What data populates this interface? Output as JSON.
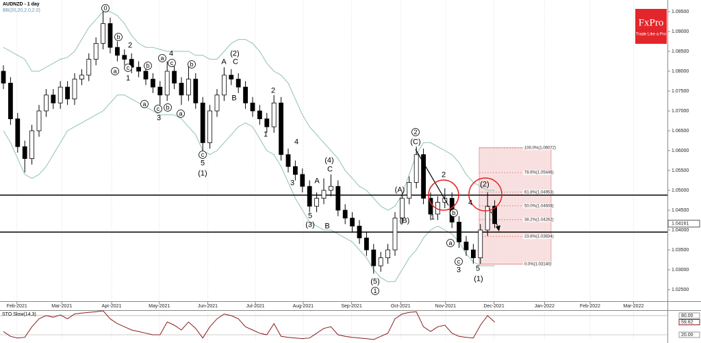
{
  "logo": {
    "brand": "FxPro",
    "tagline": "Trade Like a Pro"
  },
  "chart_data": [
    {
      "type": "candlestick",
      "title": "AUDNZD - 1 day",
      "subtitle": "BB(20,20,2.0,2.0)",
      "categories": [
        null,
        null,
        null,
        null,
        null,
        null,
        null,
        null,
        null,
        null,
        null,
        null,
        null,
        null,
        null,
        null,
        null,
        null,
        null,
        null,
        null,
        null,
        null,
        null,
        null,
        null,
        null,
        null,
        null,
        null,
        null,
        null,
        null,
        null,
        null,
        null,
        null,
        null,
        null,
        null,
        null,
        null,
        null,
        null,
        null,
        null,
        null,
        null,
        null,
        null,
        null,
        null,
        null,
        null,
        null,
        null,
        null,
        null,
        null,
        null,
        null,
        null,
        null,
        null,
        null,
        null,
        null,
        null,
        null,
        null
      ],
      "open": [
        1.08,
        1.077,
        1.068,
        1.061,
        1.058,
        1.065,
        1.07,
        1.074,
        1.072,
        1.076,
        1.073,
        1.078,
        1.079,
        1.083,
        1.087,
        1.092,
        1.086,
        1.084,
        1.083,
        1.081,
        1.08,
        1.078,
        1.076,
        1.074,
        1.08,
        1.077,
        1.074,
        1.078,
        1.072,
        1.062,
        1.07,
        1.074,
        1.079,
        1.078,
        1.076,
        1.072,
        1.07,
        1.068,
        1.066,
        1.072,
        1.059,
        1.056,
        1.054,
        1.051,
        1.046,
        1.048,
        1.05,
        1.051,
        1.045,
        1.043,
        1.041,
        1.038,
        1.035,
        1.031,
        1.033,
        1.035,
        1.043,
        1.048,
        1.052,
        1.059,
        1.048,
        1.044,
        1.047,
        1.048,
        1.042,
        1.037,
        1.035,
        1.033,
        1.04,
        1.046
      ],
      "high": [
        1.0815,
        1.0785,
        1.0695,
        1.0625,
        1.0665,
        1.0715,
        1.0755,
        1.0755,
        1.0775,
        1.0775,
        1.0795,
        1.0805,
        1.0845,
        1.0885,
        1.095,
        1.0935,
        1.0875,
        1.0855,
        1.0845,
        1.0825,
        1.0815,
        1.0795,
        1.0775,
        1.0825,
        1.0815,
        1.0785,
        1.0815,
        1.0795,
        1.0735,
        1.0715,
        1.0755,
        1.081,
        1.0805,
        1.0795,
        1.0775,
        1.0735,
        1.0715,
        1.0695,
        1.074,
        1.0735,
        1.0605,
        1.0575,
        1.0555,
        1.0525,
        1.0495,
        1.053,
        1.054,
        1.0525,
        1.0465,
        1.0445,
        1.0425,
        1.0395,
        1.0365,
        1.0345,
        1.0365,
        1.0445,
        1.0495,
        1.0535,
        1.061,
        1.0605,
        1.0495,
        1.0485,
        1.0505,
        1.0495,
        1.0435,
        1.0385,
        1.0365,
        1.0415,
        1.0495,
        1.0475
      ],
      "low": [
        1.0755,
        1.0665,
        1.0595,
        1.0545,
        1.0565,
        1.0635,
        1.0685,
        1.0705,
        1.0705,
        1.0715,
        1.0715,
        1.0765,
        1.0775,
        1.0815,
        1.0855,
        1.0845,
        1.0825,
        1.0815,
        1.0795,
        1.0785,
        1.0765,
        1.0745,
        1.0715,
        1.0725,
        1.0755,
        1.0715,
        1.0725,
        1.0705,
        1.0595,
        1.0605,
        1.0685,
        1.0725,
        1.0765,
        1.0745,
        1.0705,
        1.0685,
        1.0665,
        1.0645,
        1.0645,
        1.0575,
        1.0545,
        1.0525,
        1.0495,
        1.0445,
        1.0445,
        1.0465,
        1.0485,
        1.0435,
        1.0415,
        1.0395,
        1.0365,
        1.0335,
        1.029,
        1.0295,
        1.0315,
        1.0335,
        1.0415,
        1.0465,
        1.0505,
        1.0465,
        1.0425,
        1.0425,
        1.0455,
        1.0405,
        1.0355,
        1.0335,
        1.0315,
        1.0315,
        1.0385,
        1.0405
      ],
      "close": [
        1.077,
        1.068,
        1.061,
        1.058,
        1.065,
        1.07,
        1.074,
        1.072,
        1.076,
        1.073,
        1.078,
        1.079,
        1.083,
        1.087,
        1.092,
        1.086,
        1.084,
        1.083,
        1.081,
        1.08,
        1.078,
        1.076,
        1.074,
        1.08,
        1.077,
        1.074,
        1.078,
        1.072,
        1.062,
        1.07,
        1.074,
        1.079,
        1.078,
        1.076,
        1.072,
        1.07,
        1.068,
        1.066,
        1.072,
        1.059,
        1.056,
        1.054,
        1.051,
        1.046,
        1.048,
        1.05,
        1.051,
        1.045,
        1.043,
        1.041,
        1.038,
        1.035,
        1.031,
        1.033,
        1.035,
        1.043,
        1.048,
        1.052,
        1.059,
        1.048,
        1.044,
        1.047,
        1.048,
        1.042,
        1.037,
        1.035,
        1.033,
        1.04,
        1.046,
        1.0416
      ],
      "bb_upper": [
        1.086,
        1.085,
        1.084,
        1.083,
        1.08,
        1.08,
        1.081,
        1.082,
        1.083,
        1.0835,
        1.085,
        1.088,
        1.091,
        1.093,
        1.095,
        1.095,
        1.094,
        1.092,
        1.089,
        1.087,
        1.086,
        1.086,
        1.0855,
        1.085,
        1.085,
        1.085,
        1.085,
        1.084,
        1.084,
        1.083,
        1.083,
        1.085,
        1.087,
        1.088,
        1.088,
        1.087,
        1.085,
        1.082,
        1.08,
        1.079,
        1.077,
        1.073,
        1.069,
        1.066,
        1.064,
        1.062,
        1.06,
        1.058,
        1.055,
        1.053,
        1.051,
        1.05,
        1.048,
        1.046,
        1.045,
        1.046,
        1.049,
        1.054,
        1.059,
        1.062,
        1.062,
        1.061,
        1.06,
        1.059,
        1.057,
        1.054,
        1.052,
        1.051,
        1.05,
        1.05
      ],
      "bb_lower": [
        1.065,
        1.062,
        1.058,
        1.054,
        1.053,
        1.054,
        1.056,
        1.059,
        1.062,
        1.065,
        1.066,
        1.067,
        1.068,
        1.069,
        1.07,
        1.072,
        1.074,
        1.074,
        1.073,
        1.072,
        1.071,
        1.07,
        1.069,
        1.069,
        1.069,
        1.068,
        1.066,
        1.064,
        1.06,
        1.059,
        1.06,
        1.062,
        1.064,
        1.066,
        1.067,
        1.066,
        1.063,
        1.06,
        1.059,
        1.056,
        1.052,
        1.048,
        1.045,
        1.042,
        1.041,
        1.04,
        1.04,
        1.039,
        1.038,
        1.037,
        1.035,
        1.033,
        1.03,
        1.028,
        1.027,
        1.027,
        1.03,
        1.033,
        1.035,
        1.038,
        1.04,
        1.041,
        1.04,
        1.039,
        1.037,
        1.034,
        1.032,
        1.031,
        1.031,
        1.031
      ],
      "band_color": "#8fc3a8",
      "hlines": [
        1.0488,
        1.03948
      ],
      "last_price": {
        "value": 1.04161,
        "label": "1.04161"
      },
      "fib_levels": [
        {
          "value": 1.06072,
          "label": "100.0%(1.06072)"
        },
        {
          "value": 1.05446,
          "label": "78.6%(1.05446)"
        },
        {
          "value": 1.04953,
          "label": "61.8%(1.04953)"
        },
        {
          "value": 1.04608,
          "label": "50.0%(1.04608)"
        },
        {
          "value": 1.04262,
          "label": "38.2%(1.04262)"
        },
        {
          "value": 1.03834,
          "label": "23.6%(1.03834)"
        },
        {
          "value": 1.0314,
          "label": "0.0%(1.03140)"
        }
      ],
      "wave_labels": [
        "0",
        "b",
        "a",
        "2",
        "c",
        "1",
        "a",
        "b",
        "a",
        "4",
        "c",
        "b",
        "c",
        "b",
        "3",
        "a",
        "c",
        "5",
        "(1)",
        "(2)",
        "A",
        "C",
        "B",
        "2",
        "1",
        "4",
        "(4)",
        "C",
        "3",
        "A",
        "5",
        "(3)",
        "B",
        "(5)",
        "1",
        "(A)",
        "(B)",
        "2",
        "(C)",
        "1",
        "2",
        "b",
        "a",
        "4",
        "c",
        "3",
        "5",
        "(1)",
        "(2)"
      ],
      "grid": true,
      "xlim": [
        -0.48,
        93.27
      ],
      "xticks": [
        {
          "value": 1.9,
          "label": "Feb-2021"
        },
        {
          "value": 8.2,
          "label": "Mar-2021"
        },
        {
          "value": 15.2,
          "label": "Apr-2021"
        },
        {
          "value": 21.9,
          "label": "May-2021"
        },
        {
          "value": 28.7,
          "label": "Jun-2021"
        },
        {
          "value": 35.4,
          "label": "Jul-2021"
        },
        {
          "value": 42.1,
          "label": "Aug-2021"
        },
        {
          "value": 48.9,
          "label": "Sep-2021"
        },
        {
          "value": 55.8,
          "label": "Oct-2021"
        },
        {
          "value": 62.1,
          "label": "Nov-2021"
        },
        {
          "value": 68.9,
          "label": "Dec-2021"
        },
        {
          "value": 76,
          "label": "Jan-2022"
        },
        {
          "value": 82.4,
          "label": "Feb-2022"
        },
        {
          "value": 88.5,
          "label": "Mar-2022"
        }
      ],
      "ylim": [
        1.02207,
        1.09793
      ],
      "yticks": [
        {
          "value": 1.025,
          "label": "1.02500"
        },
        {
          "value": 1.03,
          "label": "1.03000"
        },
        {
          "value": 1.035,
          "label": "1.03500"
        },
        {
          "value": 1.04,
          "label": "1.04000"
        },
        {
          "value": 1.045,
          "label": "1.04500"
        },
        {
          "value": 1.05,
          "label": "1.05000"
        },
        {
          "value": 1.055,
          "label": "1.05500"
        },
        {
          "value": 1.06,
          "label": "1.06000"
        },
        {
          "value": 1.065,
          "label": "1.06500"
        },
        {
          "value": 1.07,
          "label": "1.07000"
        },
        {
          "value": 1.075,
          "label": "1.07500"
        },
        {
          "value": 1.08,
          "label": "1.08000"
        },
        {
          "value": 1.085,
          "label": "1.08500"
        },
        {
          "value": 1.09,
          "label": "1.09000"
        },
        {
          "value": 1.095,
          "label": "1.09500"
        }
      ]
    },
    {
      "type": "line",
      "title": "STO Slow(14,3)",
      "color": "#8b1a1a",
      "values": [
        30,
        15,
        10,
        12,
        45,
        70,
        80,
        75,
        82,
        70,
        85,
        88,
        90,
        92,
        95,
        70,
        55,
        45,
        35,
        30,
        25,
        20,
        20,
        60,
        50,
        35,
        60,
        40,
        10,
        45,
        70,
        85,
        80,
        70,
        45,
        35,
        25,
        20,
        55,
        15,
        12,
        10,
        8,
        10,
        25,
        40,
        45,
        20,
        15,
        12,
        10,
        8,
        5,
        15,
        25,
        70,
        85,
        90,
        92,
        45,
        30,
        45,
        50,
        25,
        15,
        12,
        10,
        50,
        80,
        59.62
      ],
      "ylim": [
        0.7,
        97.1
      ],
      "yticks": [
        {
          "value": 20,
          "label": "20.00"
        },
        {
          "value": 80,
          "label": "80.00"
        }
      ]
    }
  ]
}
